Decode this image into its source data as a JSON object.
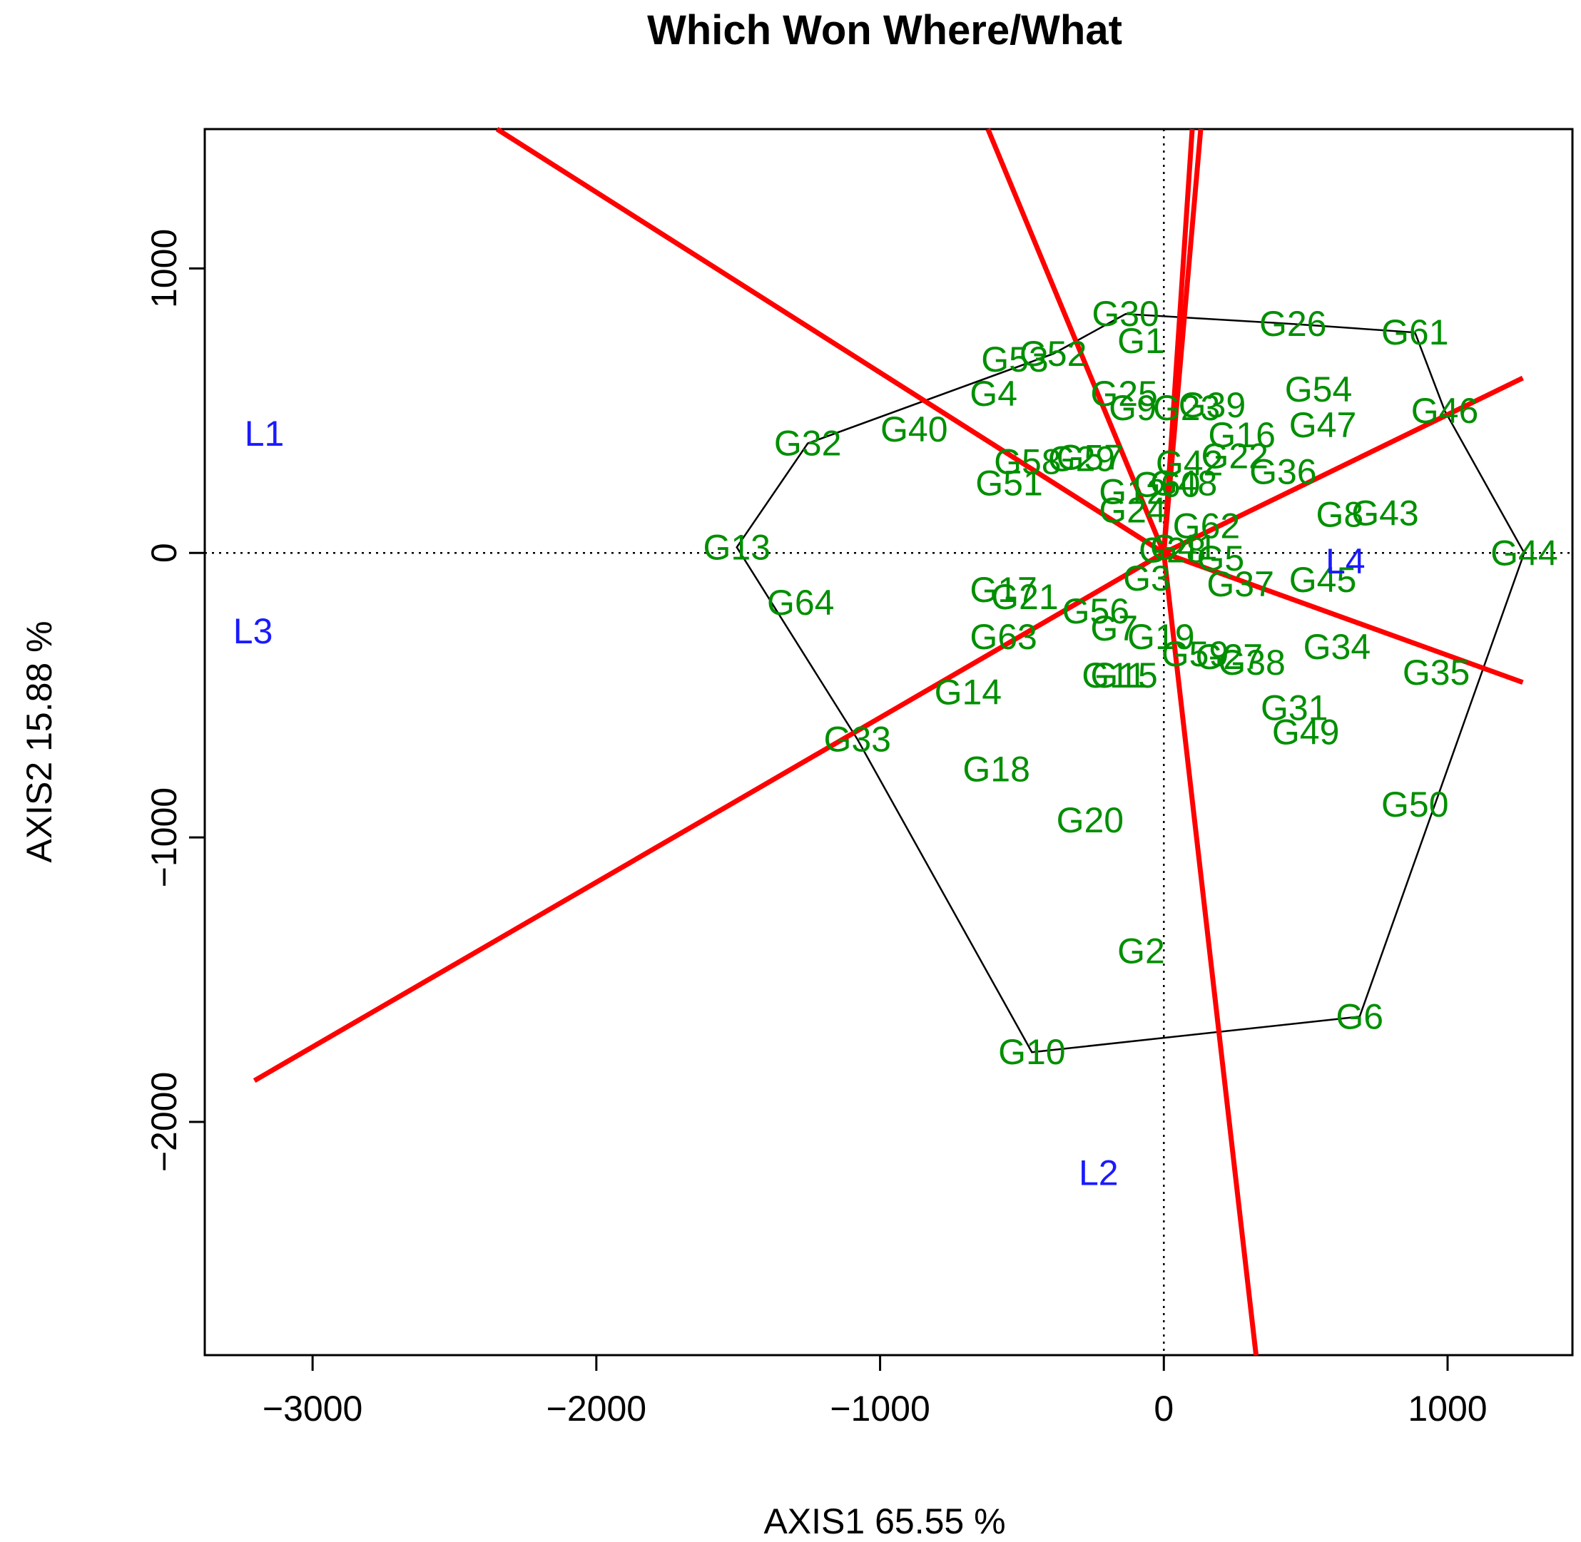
{
  "chart_data": {
    "type": "scatter",
    "title": "Which Won Where/What",
    "xlabel": "AXIS1 65.55 %",
    "ylabel": "AXIS2 15.88 %",
    "xlim": [
      -3380,
      1440
    ],
    "ylim": [
      -2820,
      1490
    ],
    "xticks": [
      -3000,
      -2000,
      -1000,
      0,
      1000
    ],
    "yticks": [
      -2000,
      -1000,
      0,
      1000
    ],
    "grid": false,
    "reference_lines": {
      "x": 0,
      "y": 0,
      "style": "dotted"
    },
    "colors": {
      "genotypes": "#008f00",
      "environments": "#1a1aff",
      "sectors": "#ff0000",
      "hull": "#000000"
    },
    "genotypes": [
      {
        "label": "G30",
        "x": -135,
        "y": 840
      },
      {
        "label": "G1",
        "x": -80,
        "y": 745
      },
      {
        "label": "G26",
        "x": 455,
        "y": 805
      },
      {
        "label": "G61",
        "x": 885,
        "y": 775
      },
      {
        "label": "G53",
        "x": -525,
        "y": 680
      },
      {
        "label": "G52",
        "x": -390,
        "y": 700
      },
      {
        "label": "G4",
        "x": -600,
        "y": 560
      },
      {
        "label": "G25",
        "x": -140,
        "y": 560
      },
      {
        "label": "G39",
        "x": 170,
        "y": 520
      },
      {
        "label": "G9",
        "x": -110,
        "y": 510
      },
      {
        "label": "G23",
        "x": 80,
        "y": 510
      },
      {
        "label": "G54",
        "x": 545,
        "y": 575
      },
      {
        "label": "G46",
        "x": 990,
        "y": 500
      },
      {
        "label": "G40",
        "x": -880,
        "y": 435
      },
      {
        "label": "G32",
        "x": -1255,
        "y": 385
      },
      {
        "label": "G16",
        "x": 275,
        "y": 415
      },
      {
        "label": "G47",
        "x": 560,
        "y": 450
      },
      {
        "label": "G58",
        "x": -480,
        "y": 320
      },
      {
        "label": "G57",
        "x": -260,
        "y": 335
      },
      {
        "label": "G29",
        "x": -290,
        "y": 330
      },
      {
        "label": "G42",
        "x": 90,
        "y": 315
      },
      {
        "label": "G22",
        "x": 250,
        "y": 340
      },
      {
        "label": "G36",
        "x": 420,
        "y": 285
      },
      {
        "label": "G51",
        "x": -545,
        "y": 245
      },
      {
        "label": "G12",
        "x": -110,
        "y": 215
      },
      {
        "label": "G60",
        "x": 10,
        "y": 240
      },
      {
        "label": "G48",
        "x": 70,
        "y": 245
      },
      {
        "label": "G24",
        "x": -110,
        "y": 150
      },
      {
        "label": "G8",
        "x": 620,
        "y": 135
      },
      {
        "label": "G43",
        "x": 780,
        "y": 140
      },
      {
        "label": "G13",
        "x": -1505,
        "y": 20
      },
      {
        "label": "G62",
        "x": 150,
        "y": 95
      },
      {
        "label": "G44",
        "x": 1270,
        "y": 0
      },
      {
        "label": "G41",
        "x": 70,
        "y": 20
      },
      {
        "label": "G28",
        "x": 30,
        "y": 10
      },
      {
        "label": "G5",
        "x": 200,
        "y": -20
      },
      {
        "label": "G3",
        "x": -60,
        "y": -90
      },
      {
        "label": "G37",
        "x": 270,
        "y": -110
      },
      {
        "label": "G45",
        "x": 560,
        "y": -95
      },
      {
        "label": "G17",
        "x": -565,
        "y": -130
      },
      {
        "label": "G21",
        "x": -490,
        "y": -155
      },
      {
        "label": "G64",
        "x": -1280,
        "y": -175
      },
      {
        "label": "G56",
        "x": -240,
        "y": -205
      },
      {
        "label": "G63",
        "x": -565,
        "y": -295
      },
      {
        "label": "G7",
        "x": -175,
        "y": -265
      },
      {
        "label": "G19",
        "x": -10,
        "y": -295
      },
      {
        "label": "G59",
        "x": 110,
        "y": -355
      },
      {
        "label": "G27",
        "x": 230,
        "y": -365
      },
      {
        "label": "G38",
        "x": 310,
        "y": -385
      },
      {
        "label": "G34",
        "x": 610,
        "y": -330
      },
      {
        "label": "G35",
        "x": 960,
        "y": -420
      },
      {
        "label": "G11",
        "x": -175,
        "y": -430
      },
      {
        "label": "G15",
        "x": -140,
        "y": -430
      },
      {
        "label": "G14",
        "x": -690,
        "y": -490
      },
      {
        "label": "G31",
        "x": 460,
        "y": -545
      },
      {
        "label": "G49",
        "x": 500,
        "y": -630
      },
      {
        "label": "G33",
        "x": -1080,
        "y": -655
      },
      {
        "label": "G18",
        "x": -590,
        "y": -760
      },
      {
        "label": "G50",
        "x": 885,
        "y": -885
      },
      {
        "label": "G20",
        "x": -260,
        "y": -940
      },
      {
        "label": "G2",
        "x": -80,
        "y": -1400
      },
      {
        "label": "G6",
        "x": 690,
        "y": -1630
      },
      {
        "label": "G10",
        "x": -465,
        "y": -1755
      }
    ],
    "environments": [
      {
        "label": "L1",
        "x": -3170,
        "y": 420
      },
      {
        "label": "L2",
        "x": -230,
        "y": -2180
      },
      {
        "label": "L3",
        "x": -3210,
        "y": -275
      },
      {
        "label": "L4",
        "x": 640,
        "y": -30
      }
    ],
    "polygon_vertices": [
      "G30",
      "G26",
      "G61",
      "G46",
      "G44",
      "G6",
      "G10",
      "G33",
      "G13",
      "G32",
      "G52"
    ],
    "sector_rays": [
      {
        "x2": -2350,
        "y2": 1490
      },
      {
        "x2": -620,
        "y2": 1490
      },
      {
        "x2": 100,
        "y2": 1490
      },
      {
        "x2": 130,
        "y2": 1490
      },
      {
        "x2": 1265,
        "y2": 615
      },
      {
        "x2": 1265,
        "y2": -455
      },
      {
        "x2": 325,
        "y2": -2820
      },
      {
        "x2": -3205,
        "y2": -1855
      }
    ]
  }
}
